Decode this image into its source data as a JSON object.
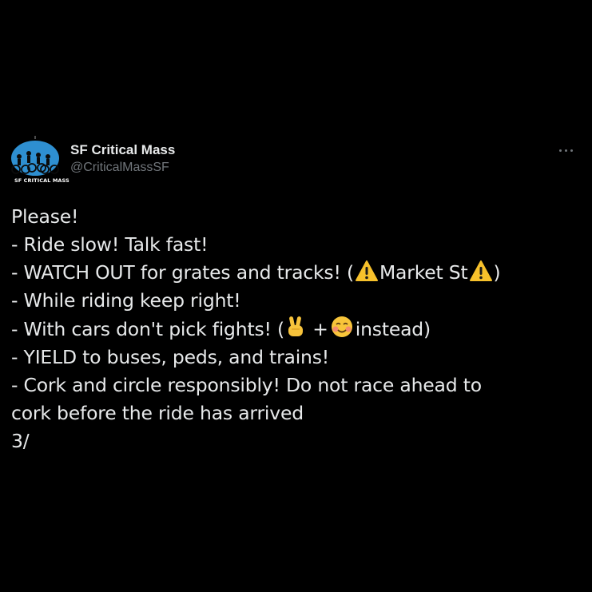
{
  "tweet": {
    "author": {
      "display_name": "SF Critical Mass",
      "handle": "@CriticalMassSF",
      "avatar_text": "SF CRITICAL MASS"
    },
    "more_icon": "ellipsis-icon",
    "lines": {
      "l1": "Please!",
      "l2": "- Ride slow! Talk fast!",
      "l3_a": "- WATCH OUT for grates and tracks! (",
      "l3_b": "Market St",
      "l3_c": ")",
      "l4": "- While riding keep right!",
      "l5_a": "- With cars don't pick fights! (",
      "l5_b": " +",
      "l5_c": "instead)",
      "l6": "- YIELD to buses, peds, and trains!",
      "l7": "- Cork and circle responsibly! Do not race ahead to",
      "l8": "cork before the ride has arrived",
      "l9": "3/"
    },
    "emoji": {
      "warning": "warning-icon",
      "victory": "victory-hand-icon",
      "smile": "smiling-face-icon"
    }
  },
  "colors": {
    "background": "#000000",
    "text": "#e7e9ea",
    "secondary": "#71767b",
    "avatar_blue": "#2e8fd1"
  }
}
